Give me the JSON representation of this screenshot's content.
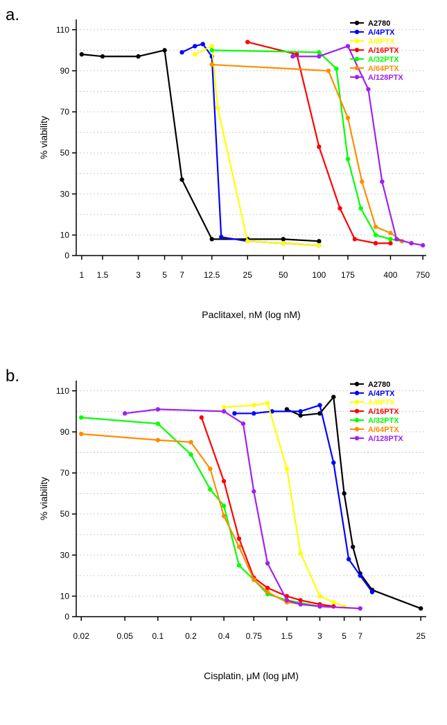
{
  "panels": {
    "a": {
      "label": "a.",
      "label_fontsize": 24,
      "chart": {
        "type": "line",
        "xlabel": "Paclitaxel, nM (log nM)",
        "ylabel": "% viability",
        "label_fontsize": 14,
        "tick_fontsize": 12,
        "legend_fontsize": 11,
        "background_color": "#ffffff",
        "axis_color": "#000000",
        "grid_color": "#cccccc",
        "line_width": 2.2,
        "marker_radius": 3.2,
        "xscale": "log",
        "xlim": [
          0.9,
          800
        ],
        "ylim": [
          0,
          115
        ],
        "yticks": [
          0,
          10,
          30,
          50,
          70,
          90,
          110
        ],
        "xticks": [
          1,
          1.5,
          3,
          5,
          7,
          12.5,
          25,
          50,
          100,
          175,
          400,
          750
        ],
        "xtick_labels": [
          "1",
          "1.5",
          "3",
          "5",
          "7",
          "12.5",
          "25",
          "50",
          "100",
          "175",
          "400",
          "750"
        ],
        "grid_ylines": [
          10,
          20,
          30,
          40,
          50,
          60,
          70,
          80,
          90,
          100,
          110
        ],
        "legend_position": "top-right",
        "series": [
          {
            "name": "A2780",
            "color": "#000000",
            "x": [
              1,
              1.5,
              3,
              5,
              7,
              12.5,
              25,
              50,
              100
            ],
            "y": [
              98,
              97,
              97,
              100,
              37,
              8,
              8,
              8,
              7
            ]
          },
          {
            "name": "A/4PTX",
            "color": "#0000ff",
            "x": [
              7,
              9,
              10.5,
              12.5,
              15,
              25,
              50,
              100
            ],
            "y": [
              99,
              102,
              103,
              97,
              9,
              7,
              6,
              5
            ]
          },
          {
            "name": "A/8PTX",
            "color": "#ffff00",
            "x": [
              9,
              12.5,
              14,
              25,
              50,
              100
            ],
            "y": [
              98,
              102,
              72,
              7,
              6,
              5
            ]
          },
          {
            "name": "A/16PTX",
            "color": "#ff0000",
            "x": [
              25,
              65,
              100,
              150,
              200,
              300,
              400
            ],
            "y": [
              104,
              98,
              53,
              23,
              8,
              6,
              6
            ]
          },
          {
            "name": "A/32PTX",
            "color": "#00ff00",
            "x": [
              12.5,
              100,
              140,
              175,
              225,
              300,
              400,
              500
            ],
            "y": [
              100,
              99,
              91,
              47,
              23,
              10,
              8,
              7
            ]
          },
          {
            "name": "A/64PTX",
            "color": "#ff8c00",
            "x": [
              12.5,
              120,
              175,
              230,
              300,
              400,
              500
            ],
            "y": [
              93,
              90,
              67,
              36,
              14,
              11,
              7
            ]
          },
          {
            "name": "A/128PTX",
            "color": "#a020f0",
            "x": [
              60,
              100,
              175,
              260,
              340,
              450,
              600,
              750
            ],
            "y": [
              97,
              97,
              102,
              81,
              36,
              8,
              6,
              5
            ]
          }
        ]
      }
    },
    "b": {
      "label": "b.",
      "label_fontsize": 24,
      "chart": {
        "type": "line",
        "xlabel": "Cisplatin, μM (log μM)",
        "ylabel": "% viability",
        "label_fontsize": 14,
        "tick_fontsize": 12,
        "legend_fontsize": 11,
        "background_color": "#ffffff",
        "axis_color": "#000000",
        "grid_color": "#cccccc",
        "line_width": 2.2,
        "marker_radius": 3.2,
        "xscale": "log",
        "xlim": [
          0.018,
          28
        ],
        "ylim": [
          0,
          115
        ],
        "yticks": [
          0,
          10,
          30,
          50,
          70,
          90,
          110
        ],
        "xticks": [
          0.02,
          0.05,
          0.1,
          0.2,
          0.4,
          0.75,
          1.5,
          3,
          5,
          7,
          25
        ],
        "xtick_labels": [
          "0.02",
          "0.05",
          "0.1",
          "0.2",
          "0.4",
          "0.75",
          "1.5",
          "3",
          "5",
          "7",
          "25"
        ],
        "grid_ylines": [
          10,
          20,
          30,
          40,
          50,
          60,
          70,
          80,
          90,
          100,
          110
        ],
        "legend_position": "top-right",
        "series": [
          {
            "name": "A2780",
            "color": "#000000",
            "x": [
              1.5,
              2,
              3,
              4,
              5,
              6,
              7,
              9,
              25
            ],
            "y": [
              101,
              98,
              99,
              107,
              60,
              34,
              21,
              13,
              4
            ]
          },
          {
            "name": "A/4PTX",
            "color": "#0000ff",
            "x": [
              0.5,
              0.75,
              1.1,
              2,
              3,
              4,
              5.5,
              7,
              9
            ],
            "y": [
              99,
              99,
              100,
              100,
              103,
              75,
              28,
              20,
              12
            ]
          },
          {
            "name": "A/8PTX",
            "color": "#ffff00",
            "x": [
              0.4,
              0.75,
              1,
              1.5,
              2,
              3,
              4,
              5
            ],
            "y": [
              102,
              103,
              104,
              72,
              31,
              10,
              7,
              5
            ]
          },
          {
            "name": "A/16PTX",
            "color": "#ff0000",
            "x": [
              0.25,
              0.4,
              0.55,
              0.75,
              1,
              1.5,
              2,
              3,
              4
            ],
            "y": [
              97,
              66,
              38,
              19,
              14,
              10,
              8,
              6,
              5
            ]
          },
          {
            "name": "A/32PTX",
            "color": "#00ff00",
            "x": [
              0.02,
              0.1,
              0.2,
              0.3,
              0.4,
              0.55,
              0.75,
              1,
              1.5,
              3
            ],
            "y": [
              97,
              94,
              79,
              62,
              54,
              25,
              18,
              11,
              8,
              5
            ]
          },
          {
            "name": "A/64PTX",
            "color": "#ff8c00",
            "x": [
              0.02,
              0.1,
              0.2,
              0.3,
              0.4,
              0.55,
              0.75,
              1,
              1.5,
              3
            ],
            "y": [
              89,
              86,
              85,
              72,
              49,
              34,
              18,
              12,
              7,
              5
            ]
          },
          {
            "name": "A/128PTX",
            "color": "#a020f0",
            "x": [
              0.05,
              0.1,
              0.4,
              0.6,
              0.75,
              1,
              1.5,
              2,
              3,
              7
            ],
            "y": [
              99,
              101,
              100,
              94,
              61,
              26,
              8,
              6,
              5,
              4
            ]
          }
        ]
      }
    }
  }
}
